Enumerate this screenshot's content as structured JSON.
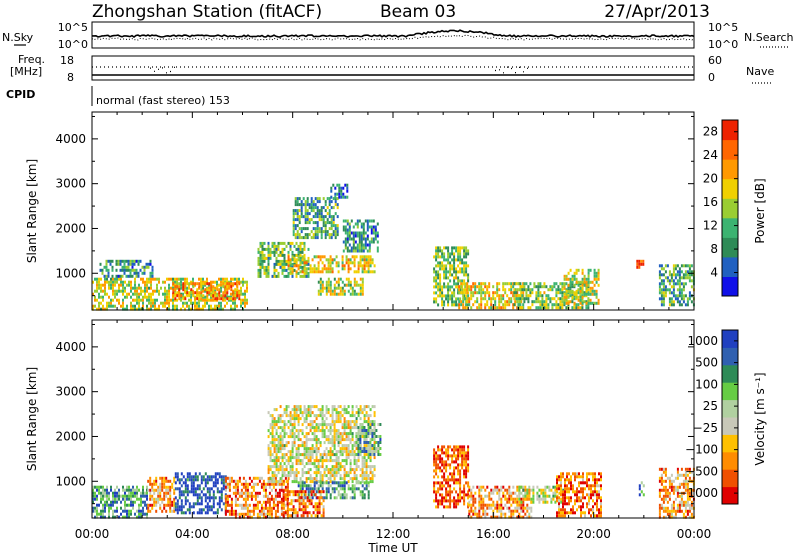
{
  "header": {
    "title": "Zhongshan Station (fitACF)",
    "beam": "Beam 03",
    "date": "27/Apr/2013"
  },
  "top_panel": {
    "left_label": "N.Sky",
    "left_ticks": [
      "10^5",
      "10^0"
    ],
    "right_label": "N.Search",
    "right_ticks": [
      "10^5",
      "10^0"
    ]
  },
  "freq_panel": {
    "left_label_1": "Freq.",
    "left_label_2": "[MHz]",
    "left_ticks": [
      "18",
      "8"
    ],
    "right_label": "Nave",
    "right_ticks": [
      "60",
      "0"
    ]
  },
  "cpid": {
    "label": "CPID",
    "text": "normal (fast stereo) 153"
  },
  "colors": {
    "power_scale": [
      "#1010e8",
      "#2060c0",
      "#2e8b57",
      "#3cb371",
      "#9acd32",
      "#f0d000",
      "#ff9900",
      "#ff6600",
      "#ee2200"
    ],
    "velocity_scale": [
      "#e00000",
      "#f05000",
      "#ff8c00",
      "#ffc000",
      "#c8c8b8",
      "#b0d0a0",
      "#66cc44",
      "#2e8b57",
      "#3060b0",
      "#2040c0"
    ]
  },
  "chart_data": [
    {
      "type": "heatmap",
      "name": "power",
      "ylabel": "Slant Range [km]",
      "yticks": [
        "1000",
        "2000",
        "3000",
        "4000"
      ],
      "ylim": [
        180,
        4600
      ],
      "xticks": [
        "00:00",
        "04:00",
        "08:00",
        "12:00",
        "16:00",
        "20:00",
        "00:00"
      ],
      "xlim_hours": [
        0,
        24
      ],
      "colorbar_label": "Power [dB]",
      "colorbar_ticks": [
        "4",
        "8",
        "12",
        "16",
        "20",
        "24",
        "28"
      ],
      "colorbar_range": [
        0,
        30
      ],
      "regions": [
        {
          "t0": 0.0,
          "t1": 6.2,
          "r0": 200,
          "r1": 900,
          "level": 0.55
        },
        {
          "t0": 0.3,
          "t1": 2.4,
          "r0": 900,
          "r1": 1300,
          "level": 0.3
        },
        {
          "t0": 3.2,
          "t1": 5.9,
          "r0": 400,
          "r1": 800,
          "level": 0.75
        },
        {
          "t0": 6.6,
          "t1": 8.6,
          "r0": 900,
          "r1": 1700,
          "level": 0.4
        },
        {
          "t0": 7.8,
          "t1": 11.3,
          "r0": 1000,
          "r1": 1400,
          "level": 0.6
        },
        {
          "t0": 8.0,
          "t1": 9.8,
          "r0": 1800,
          "r1": 2700,
          "level": 0.35
        },
        {
          "t0": 9.0,
          "t1": 10.8,
          "r0": 500,
          "r1": 900,
          "level": 0.5
        },
        {
          "t0": 10.0,
          "t1": 11.4,
          "r0": 1500,
          "r1": 2200,
          "level": 0.3
        },
        {
          "t0": 9.5,
          "t1": 10.2,
          "r0": 2700,
          "r1": 3000,
          "level": 0.25
        },
        {
          "t0": 13.6,
          "t1": 15.0,
          "r0": 300,
          "r1": 1600,
          "level": 0.45
        },
        {
          "t0": 14.6,
          "t1": 17.2,
          "r0": 250,
          "r1": 800,
          "level": 0.6
        },
        {
          "t0": 16.8,
          "t1": 19.8,
          "r0": 250,
          "r1": 800,
          "level": 0.45
        },
        {
          "t0": 18.8,
          "t1": 20.2,
          "r0": 300,
          "r1": 1100,
          "level": 0.55
        },
        {
          "t0": 21.7,
          "t1": 21.95,
          "r0": 1100,
          "r1": 1300,
          "level": 0.9
        },
        {
          "t0": 22.6,
          "t1": 24.0,
          "r0": 300,
          "r1": 1200,
          "level": 0.35
        }
      ]
    },
    {
      "type": "heatmap",
      "name": "velocity",
      "ylabel": "Slant Range [km]",
      "yticks": [
        "1000",
        "2000",
        "3000",
        "4000"
      ],
      "ylim": [
        180,
        4600
      ],
      "xticks": [
        "00:00",
        "04:00",
        "08:00",
        "12:00",
        "16:00",
        "20:00",
        "00:00"
      ],
      "xlim_hours": [
        0,
        24
      ],
      "xlabel": "Time UT",
      "colorbar_label": "Velocity [m s⁻¹]",
      "colorbar_ticks": [
        "1000",
        "500",
        "100",
        "25",
        "−25",
        "−100",
        "−500",
        "−1000"
      ],
      "colorbar_range": [
        -1250,
        1250
      ],
      "regions": [
        {
          "t0": 0.0,
          "t1": 2.2,
          "r0": 200,
          "r1": 900,
          "level": 0.75
        },
        {
          "t0": 2.2,
          "t1": 3.3,
          "r0": 300,
          "r1": 1100,
          "level": 0.3
        },
        {
          "t0": 3.3,
          "t1": 5.3,
          "r0": 300,
          "r1": 1200,
          "level": 0.92
        },
        {
          "t0": 5.3,
          "t1": 7.8,
          "r0": 200,
          "r1": 1100,
          "level": 0.25
        },
        {
          "t0": 7.0,
          "t1": 11.3,
          "r0": 1000,
          "r1": 2700,
          "level": 0.48
        },
        {
          "t0": 8.2,
          "t1": 11.0,
          "r0": 600,
          "r1": 1000,
          "level": 0.72
        },
        {
          "t0": 7.6,
          "t1": 9.2,
          "r0": 200,
          "r1": 800,
          "level": 0.2
        },
        {
          "t0": 10.5,
          "t1": 11.5,
          "r0": 1600,
          "r1": 2300,
          "level": 0.7
        },
        {
          "t0": 13.6,
          "t1": 15.0,
          "r0": 400,
          "r1": 1800,
          "level": 0.15
        },
        {
          "t0": 15.0,
          "t1": 17.5,
          "r0": 200,
          "r1": 900,
          "level": 0.28
        },
        {
          "t0": 17.0,
          "t1": 18.8,
          "r0": 500,
          "r1": 900,
          "level": 0.5
        },
        {
          "t0": 18.5,
          "t1": 20.3,
          "r0": 200,
          "r1": 1200,
          "level": 0.2
        },
        {
          "t0": 21.8,
          "t1": 22.0,
          "r0": 700,
          "r1": 1000,
          "level": 0.75
        },
        {
          "t0": 22.6,
          "t1": 24.0,
          "r0": 200,
          "r1": 1300,
          "level": 0.3
        }
      ]
    }
  ]
}
